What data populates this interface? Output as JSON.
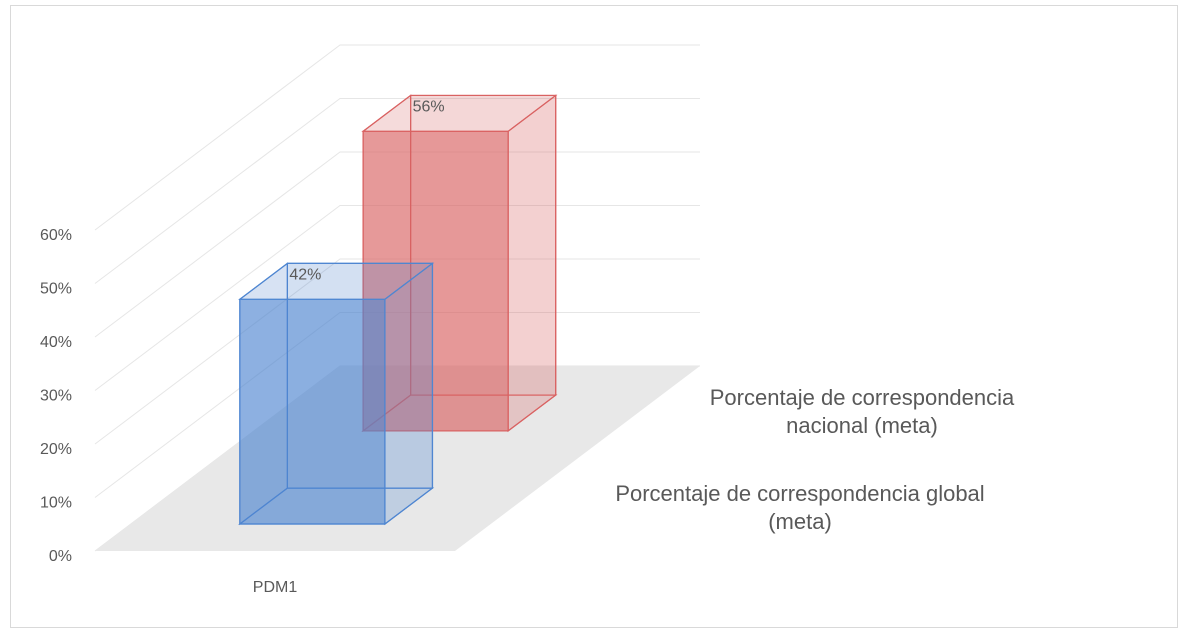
{
  "chart_data": {
    "type": "bar3d",
    "categories": [
      "PDM1"
    ],
    "series": [
      {
        "name": "Porcentaje de correspondencia global (meta)",
        "color": "#4f86d1",
        "values": [
          42
        ],
        "value_labels": [
          "42%"
        ]
      },
      {
        "name": "Porcentaje de correspondencia nacional (meta)",
        "color": "#d96262",
        "values": [
          56
        ],
        "value_labels": [
          "56%"
        ]
      }
    ],
    "ylim": [
      0,
      60
    ],
    "yticks": [
      {
        "value": 0,
        "label": "0%"
      },
      {
        "value": 10,
        "label": "10%"
      },
      {
        "value": 20,
        "label": "20%"
      },
      {
        "value": 30,
        "label": "30%"
      },
      {
        "value": 40,
        "label": "40%"
      },
      {
        "value": 50,
        "label": "50%"
      },
      {
        "value": 60,
        "label": "60%"
      }
    ],
    "grid": true
  }
}
